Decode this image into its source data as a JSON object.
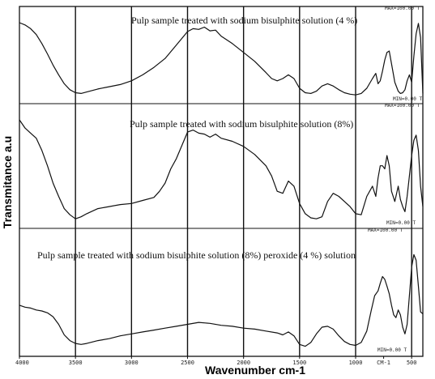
{
  "chart_data": {
    "type": "line",
    "xlabel": "Wavenumber cm-1",
    "ylabel": "Transmitance a.u",
    "xlim": [
      4000,
      400
    ],
    "x_ticks": [
      "4000",
      "3500",
      "3000",
      "2500",
      "2000",
      "1500",
      "1000",
      "CM-1",
      "500"
    ],
    "x_tick_values": [
      4000,
      3500,
      3000,
      2500,
      2000,
      1500,
      1000,
      750,
      500
    ],
    "vlines": [
      3500,
      3000,
      2500,
      2000,
      1500,
      1000,
      500
    ],
    "grid": false,
    "panels": [
      {
        "title": "Pulp sample treated with sodium bisulphite solution (4 %)",
        "max_label": "MAX=100.00 T",
        "min_label": "MIN=0.00 T",
        "series": [
          {
            "x": [
              4000,
              3950,
              3900,
              3850,
              3800,
              3750,
              3700,
              3650,
              3600,
              3550,
              3500,
              3450,
              3400,
              3300,
              3200,
              3100,
              3000,
              2900,
              2800,
              2700,
              2600,
              2500,
              2450,
              2400,
              2350,
              2300,
              2250,
              2200,
              2100,
              2000,
              1900,
              1800,
              1750,
              1700,
              1650,
              1600,
              1550,
              1500,
              1450,
              1400,
              1350,
              1300,
              1250,
              1200,
              1150,
              1100,
              1050,
              1000,
              950,
              900,
              850,
              820,
              800,
              780,
              760,
              740,
              720,
              700,
              680,
              650,
              620,
              600,
              580,
              560,
              540,
              520,
              500,
              480,
              460,
              440,
              420,
              400
            ],
            "y": [
              100,
              97,
              92,
              84,
              72,
              58,
              43,
              30,
              18,
              10,
              6,
              5,
              7,
              11,
              14,
              17,
              22,
              30,
              40,
              52,
              70,
              88,
              92,
              91,
              94,
              89,
              90,
              82,
              72,
              60,
              48,
              33,
              25,
              22,
              25,
              30,
              25,
              12,
              6,
              5,
              8,
              15,
              18,
              15,
              10,
              6,
              4,
              3,
              5,
              12,
              25,
              32,
              18,
              22,
              35,
              50,
              60,
              62,
              45,
              20,
              8,
              5,
              6,
              10,
              22,
              30,
              20,
              55,
              85,
              99,
              80,
              5
            ]
          }
        ]
      },
      {
        "title": "Pulp sample treated with sodium bisulphite solution (8%)",
        "max_label": "MAX=100.00 T",
        "min_label": "MIN=0.00 T",
        "series": [
          {
            "x": [
              4000,
              3950,
              3900,
              3850,
              3800,
              3750,
              3700,
              3650,
              3600,
              3550,
              3500,
              3450,
              3400,
              3300,
              3200,
              3100,
              3000,
              2900,
              2800,
              2750,
              2700,
              2650,
              2600,
              2550,
              2500,
              2450,
              2400,
              2350,
              2300,
              2250,
              2200,
              2100,
              2000,
              1900,
              1800,
              1750,
              1700,
              1650,
              1600,
              1550,
              1500,
              1450,
              1400,
              1350,
              1300,
              1250,
              1200,
              1150,
              1100,
              1050,
              1000,
              950,
              900,
              850,
              820,
              800,
              780,
              760,
              740,
              720,
              700,
              680,
              650,
              620,
              600,
              580,
              560,
              540,
              520,
              500,
              480,
              460,
              440,
              420,
              400
            ],
            "y": [
              100,
              92,
              87,
              82,
              70,
              55,
              38,
              25,
              13,
              7,
              3,
              5,
              8,
              13,
              15,
              17,
              18,
              21,
              24,
              30,
              38,
              52,
              62,
              75,
              88,
              90,
              87,
              86,
              83,
              86,
              82,
              79,
              74,
              66,
              55,
              45,
              30,
              28,
              40,
              35,
              18,
              8,
              4,
              3,
              5,
              20,
              28,
              25,
              20,
              15,
              8,
              7,
              25,
              35,
              25,
              43,
              55,
              55,
              52,
              65,
              55,
              30,
              20,
              35,
              22,
              15,
              10,
              25,
              45,
              65,
              80,
              85,
              70,
              35,
              15
            ]
          }
        ]
      },
      {
        "title": "Pulp sample treated with sodium bisulphite solution (8%) peroxide (4 %) solution",
        "max_label": "MAX=100.00 T",
        "min_label": "MIN=0.00 T",
        "series": [
          {
            "x": [
              4000,
              3950,
              3900,
              3850,
              3800,
              3750,
              3700,
              3650,
              3600,
              3550,
              3500,
              3450,
              3400,
              3300,
              3200,
              3100,
              3000,
              2900,
              2800,
              2700,
              2600,
              2500,
              2400,
              2300,
              2200,
              2100,
              2000,
              1900,
              1800,
              1700,
              1650,
              1600,
              1550,
              1500,
              1450,
              1400,
              1350,
              1300,
              1250,
              1200,
              1150,
              1100,
              1050,
              1000,
              950,
              900,
              860,
              830,
              800,
              780,
              760,
              740,
              720,
              700,
              680,
              660,
              640,
              620,
              600,
              580,
              560,
              540,
              520,
              500,
              480,
              460,
              440,
              420,
              400
            ],
            "y": [
              45,
              43,
              42,
              40,
              39,
              37,
              33,
              25,
              14,
              8,
              5,
              4,
              5,
              8,
              10,
              13,
              15,
              17,
              19,
              21,
              23,
              25,
              27,
              26,
              24,
              23,
              21,
              20,
              18,
              16,
              14,
              17,
              13,
              4,
              2,
              6,
              15,
              22,
              23,
              20,
              13,
              7,
              4,
              3,
              6,
              18,
              40,
              55,
              60,
              68,
              75,
              72,
              65,
              57,
              45,
              35,
              32,
              40,
              35,
              22,
              15,
              25,
              55,
              85,
              98,
              92,
              65,
              38,
              36
            ]
          }
        ]
      }
    ]
  }
}
